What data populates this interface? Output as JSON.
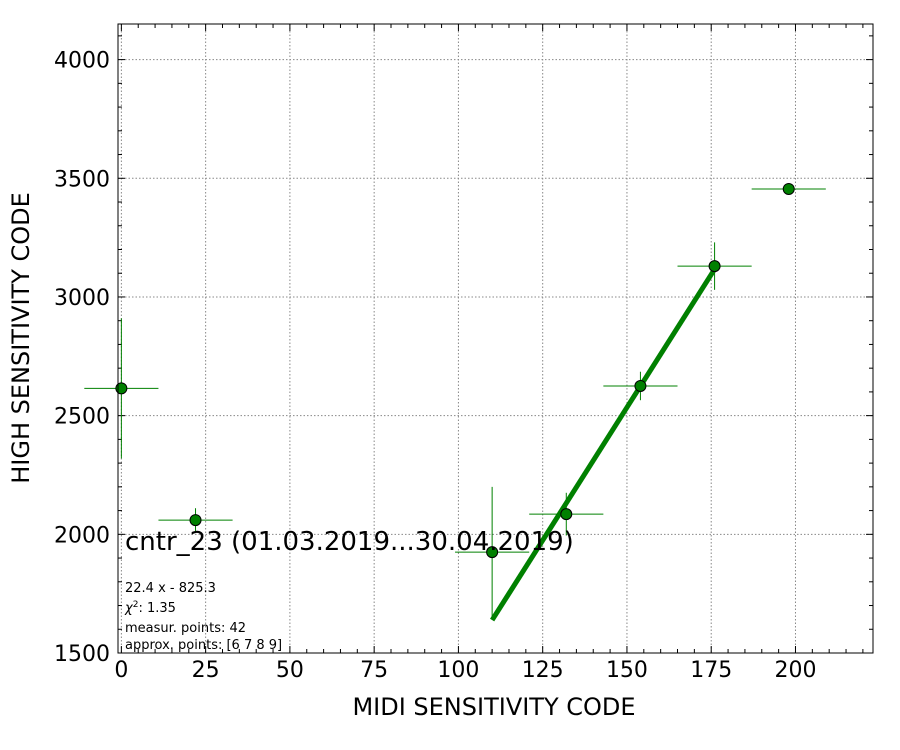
{
  "chart_data": {
    "type": "scatter",
    "title": "cntr_23 (01.03.2019...30.04.2019)",
    "xlabel": "MIDI SENSITIVITY CODE",
    "ylabel": "HIGH SENSITIVITY CODE",
    "xlim": [
      -1,
      223
    ],
    "ylim": [
      1500,
      4150
    ],
    "xticks": [
      0,
      25,
      50,
      75,
      100,
      125,
      150,
      175,
      200
    ],
    "yticks": [
      1500,
      2000,
      2500,
      3000,
      3500,
      4000
    ],
    "grid": true,
    "colors": {
      "points": "#008000",
      "fit": "#008000",
      "grid": "#888888"
    },
    "points": [
      {
        "x": 0,
        "y": 2615,
        "xerr": 11,
        "yerr": 295
      },
      {
        "x": 22,
        "y": 2060,
        "xerr": 11,
        "yerr": 50
      },
      {
        "x": 110,
        "y": 1925,
        "xerr": 11,
        "yerr": 275
      },
      {
        "x": 132,
        "y": 2085,
        "xerr": 11,
        "yerr": 90
      },
      {
        "x": 154,
        "y": 2625,
        "xerr": 11,
        "yerr": 60
      },
      {
        "x": 176,
        "y": 3130,
        "xerr": 11,
        "yerr": 100
      },
      {
        "x": 198,
        "y": 3455,
        "xerr": 11,
        "yerr": 0
      }
    ],
    "fit_line": {
      "x": [
        110,
        176
      ],
      "slope": 22.4,
      "intercept": -825.3
    },
    "annotations": {
      "equation": "22.4 x - 825.3",
      "chi2_label": "χ",
      "chi2_sup": "2",
      "chi2_value": ": 1.35",
      "measured": "measur. points: 42",
      "approx": "approx. points: [6 7 8 9]"
    }
  }
}
